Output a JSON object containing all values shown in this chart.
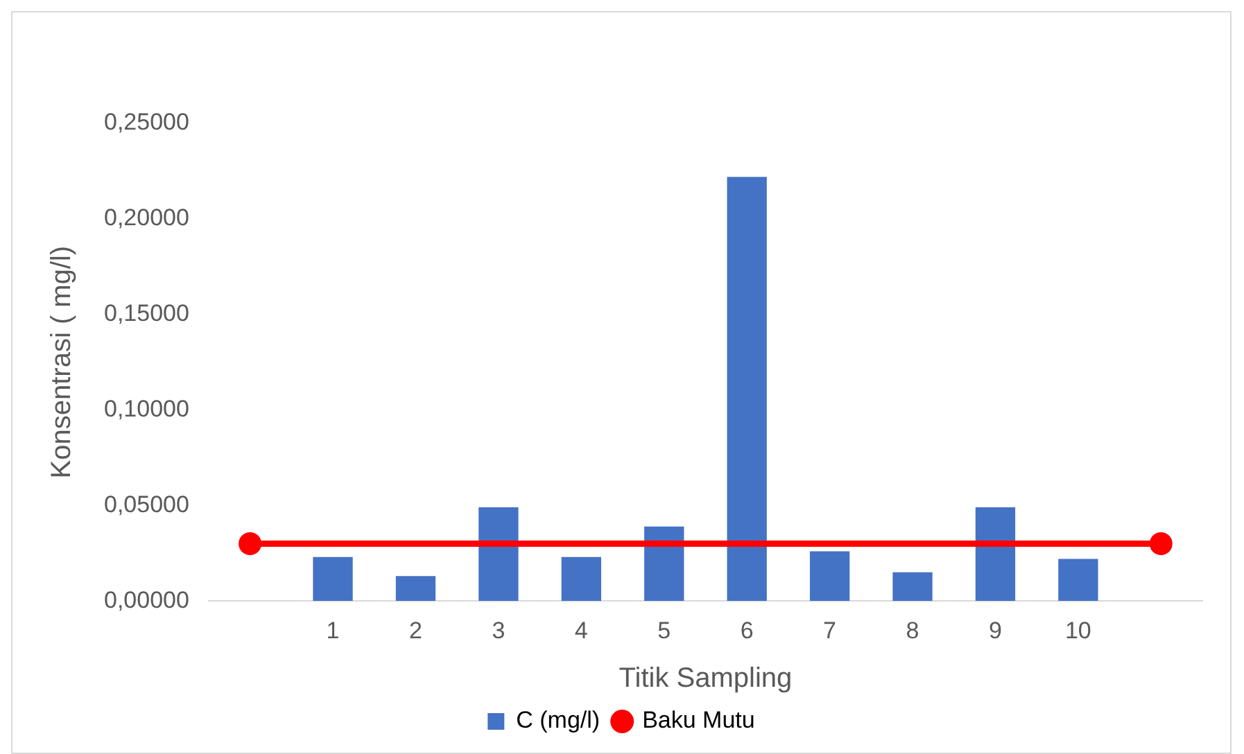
{
  "chart_data": {
    "type": "bar",
    "xlabel": "Titik Sampling",
    "ylabel": "Konsentrasi ( mg/l)",
    "categories": [
      null,
      "1",
      "2",
      "3",
      "4",
      "5",
      "6",
      "7",
      "8",
      "9",
      "10",
      null
    ],
    "series": [
      {
        "name": "C (mg/l)",
        "color": "#4472c4",
        "values": [
          null,
          0.023,
          0.013,
          0.049,
          0.023,
          0.039,
          0.222,
          0.026,
          0.015,
          0.049,
          0.022,
          null
        ]
      },
      {
        "name": "Baku Mutu",
        "type": "line",
        "color": "#ff0000",
        "marker": "circle",
        "values": [
          0.03,
          null,
          null,
          null,
          null,
          null,
          null,
          null,
          null,
          null,
          null,
          0.03
        ]
      }
    ],
    "ylim": [
      0,
      0.25
    ],
    "yticks": [
      {
        "value": 0,
        "label": "0,00000"
      },
      {
        "value": 0.05,
        "label": "0,05000"
      },
      {
        "value": 0.1,
        "label": "0,10000"
      },
      {
        "value": 0.15,
        "label": "0,15000"
      },
      {
        "value": 0.2,
        "label": "0,20000"
      },
      {
        "value": 0.25,
        "label": "0,25000"
      }
    ],
    "grid": false,
    "legend": "bottom"
  }
}
